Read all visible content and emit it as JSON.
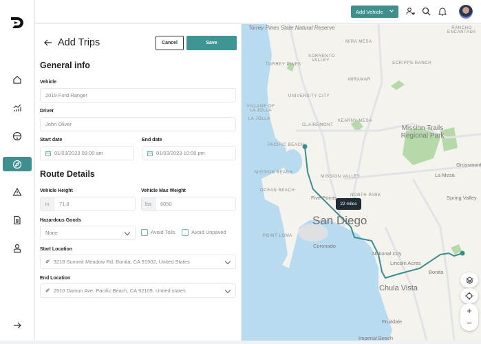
{
  "sidebar": {
    "items": [
      {
        "icon": "home-icon"
      },
      {
        "icon": "analytics-icon"
      },
      {
        "icon": "steering-wheel-icon"
      },
      {
        "icon": "compass-icon",
        "active": true
      },
      {
        "icon": "warning-icon"
      },
      {
        "icon": "document-icon"
      },
      {
        "icon": "user-icon"
      }
    ],
    "expand_icon": "arrow-right-icon"
  },
  "header": {
    "add_vehicle": "Add Vehicle"
  },
  "page": {
    "title": "Add Trips",
    "cancel": "Cancel",
    "save": "Save"
  },
  "general": {
    "title": "General info",
    "vehicle_label": "Vehicle",
    "vehicle": "2019 Ford Ranger",
    "driver_label": "Driver",
    "driver": "John Oliver",
    "start_label": "Start date",
    "start": "01/03/2023 09:00 am",
    "end_label": "End date",
    "end": "01/03/2023 10:00 pm"
  },
  "route": {
    "title": "Route Details",
    "height_label": "Vehicle Height",
    "height_unit": "in",
    "height": "71.8",
    "weight_label": "Vehicle Max Weight",
    "weight_unit": "lbs",
    "weight": "6050",
    "haz_label": "Hazardous Goods",
    "haz": "None",
    "avoid_tolls": "Avoid Tolls",
    "avoid_unpaved": "Avoid Unpaved",
    "start_loc_label": "Start Location",
    "start_loc": "3218 Summit Meadow Rd, Bonita, CA 91902, United States",
    "end_loc_label": "End Location",
    "end_loc": "2910 Damon Ave, Pacific Beach, CA 92109, United states"
  },
  "map": {
    "distance": "22 miles",
    "route_color": "#3a8d8f",
    "labels": [
      "Torrey Pines State Natural Reserve",
      "Mira Mesa",
      "Rancho Encantada",
      "Sorrento Valley",
      "Torrey Pines",
      "Scripps Ranch",
      "Miramar",
      "University City",
      "Village of La Jolla",
      "La Jolla",
      "Clairemont",
      "Kearny Mesa",
      "Mission Trails Regional Park",
      "Pacific Beach",
      "Mission Beach",
      "Mission Valley",
      "La Mesa",
      "Ocean Beach",
      "Five Points",
      "North Park",
      "Spring Valley",
      "San Diego",
      "Point Loma",
      "Coronado",
      "National City",
      "Lincoln Acres",
      "Bonita",
      "Chula Vista",
      "Fruitdale",
      "Imperial Beach",
      "Grossmont"
    ]
  }
}
